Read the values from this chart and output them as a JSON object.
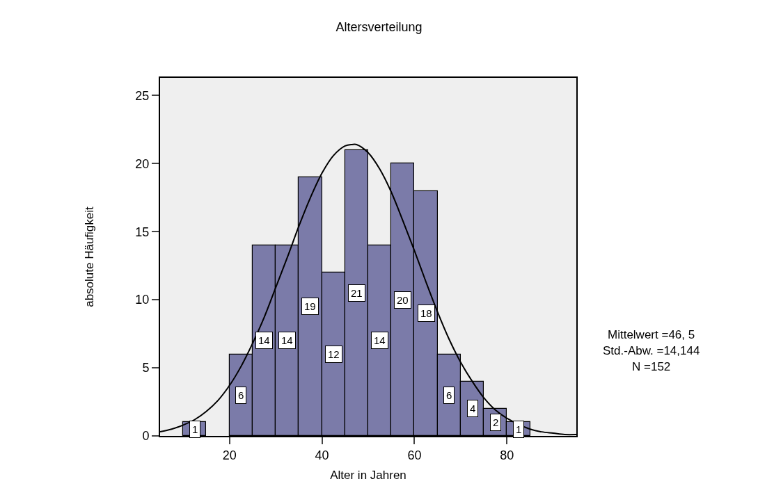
{
  "chart_data": {
    "type": "histogram",
    "title": "Altersverteilung",
    "xlabel": "Alter in Jahren",
    "ylabel": "absolute Häufigkeit",
    "bins": [
      10,
      15,
      20,
      25,
      30,
      35,
      40,
      45,
      50,
      55,
      60,
      65,
      70,
      75,
      80,
      85
    ],
    "values": [
      1,
      0,
      6,
      14,
      14,
      19,
      12,
      21,
      14,
      20,
      18,
      6,
      4,
      2,
      1
    ],
    "color": "#7b7ba9",
    "value_labels": [
      "1",
      null,
      "6",
      "14",
      "14",
      "19",
      "12",
      "21",
      "14",
      "20",
      "18",
      "6",
      "4",
      "2",
      "1"
    ],
    "series": [
      {
        "type": "line",
        "color": "#000000",
        "x": [
          5,
          7.5,
          10,
          12.5,
          15,
          17.5,
          20,
          22.5,
          25,
          27.5,
          30,
          32.5,
          35,
          37.5,
          40,
          42.5,
          45,
          46.5,
          47.5,
          50,
          52.5,
          55,
          57.5,
          60,
          62.5,
          65,
          67.5,
          70,
          72.5,
          75,
          77.5,
          80,
          82.5,
          85,
          87.5,
          90,
          92.5,
          95
        ],
        "values": [
          0.3,
          0.5,
          0.8,
          1.2,
          1.8,
          2.6,
          3.7,
          5.1,
          6.8,
          8.7,
          10.9,
          13.1,
          15.4,
          17.5,
          19.3,
          20.6,
          21.3,
          21.4,
          21.4,
          20.8,
          19.6,
          17.9,
          15.8,
          13.6,
          11.3,
          9.1,
          7.1,
          5.4,
          4.0,
          2.8,
          1.9,
          1.3,
          null,
          0.5,
          0.3,
          0.2,
          0.1,
          0.1
        ]
      }
    ],
    "xlim": [
      5,
      95
    ],
    "xticks": [
      20,
      40,
      60,
      80
    ],
    "ylim": [
      0,
      26.3
    ],
    "yticks": [
      0,
      5,
      10,
      15,
      20,
      25
    ],
    "grid": false,
    "annotations": [
      "Mittelwert =46, 5",
      "Std.-Abw. =14,144",
      "N =152"
    ]
  }
}
